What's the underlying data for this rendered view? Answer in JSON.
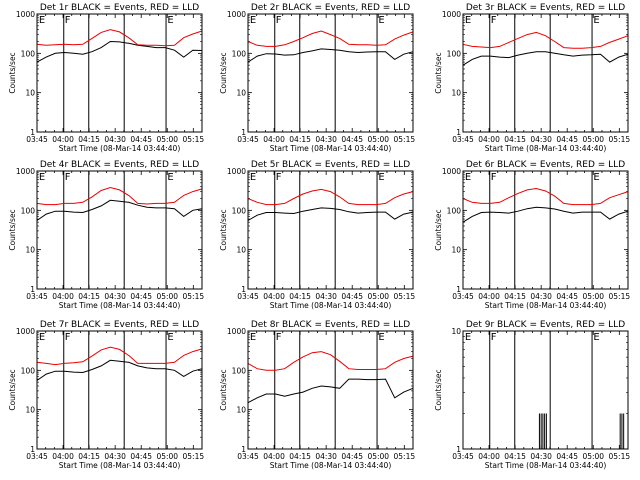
{
  "colors": {
    "events": "#000000",
    "lld": "#ee0000",
    "axis": "#000000"
  },
  "common": {
    "xlabel": "Start Time (08-Mar-14 03:44:40)",
    "ylabel": "Counts/sec",
    "x_ticks": [
      "03:45",
      "04:00",
      "04:15",
      "04:30",
      "04:45",
      "05:00",
      "05:15"
    ],
    "y_ticks": [
      "1",
      "10",
      "100",
      "1000"
    ],
    "y_scale": "log",
    "ylim": [
      1,
      1000
    ],
    "xlim_minutes_after_0345": [
      0,
      95
    ]
  },
  "chart_data": [
    {
      "type": "line",
      "title": "Det 1r BLACK = Events, RED = LLD",
      "ylim": [
        1,
        1000
      ],
      "markers": [
        {
          "label": "E",
          "x": 0.5
        },
        {
          "label": "F",
          "x": 15.4
        },
        {
          "label": "E",
          "x": 74.5
        }
      ],
      "vlines": [
        15.4,
        29.8,
        50.2,
        74.3
      ],
      "series": [
        {
          "name": "Events",
          "values": [
            60,
            80,
            100,
            105,
            100,
            95,
            110,
            140,
            200,
            195,
            180,
            160,
            150,
            140,
            140,
            120,
            80,
            120,
            118
          ]
        },
        {
          "name": "LLD",
          "values": [
            170,
            160,
            165,
            170,
            165,
            170,
            240,
            340,
            400,
            350,
            250,
            165,
            160,
            160,
            155,
            160,
            250,
            310,
            370
          ]
        }
      ]
    },
    {
      "type": "line",
      "title": "Det 2r BLACK = Events, RED = LLD",
      "ylim": [
        1,
        1000
      ],
      "markers": [
        {
          "label": "E",
          "x": 0.5
        },
        {
          "label": "F",
          "x": 15.4
        },
        {
          "label": "E",
          "x": 74.5
        }
      ],
      "vlines": [
        15.4,
        29.8,
        50.2,
        74.3
      ],
      "series": [
        {
          "name": "Events",
          "values": [
            60,
            85,
            98,
            96,
            90,
            92,
            105,
            115,
            130,
            125,
            120,
            110,
            105,
            108,
            110,
            110,
            70,
            95,
            110
          ]
        },
        {
          "name": "LLD",
          "values": [
            200,
            160,
            150,
            150,
            165,
            200,
            250,
            320,
            370,
            300,
            240,
            170,
            165,
            165,
            160,
            165,
            230,
            290,
            350
          ]
        }
      ]
    },
    {
      "type": "line",
      "title": "Det 3r BLACK = Events, RED = LLD",
      "ylim": [
        1,
        1000
      ],
      "markers": [
        {
          "label": "E",
          "x": 0.5
        },
        {
          "label": "F",
          "x": 15.4
        },
        {
          "label": "E",
          "x": 74.5
        }
      ],
      "vlines": [
        15.4,
        29.8,
        50.2,
        74.3
      ],
      "series": [
        {
          "name": "Events",
          "values": [
            50,
            70,
            85,
            85,
            80,
            78,
            90,
            100,
            110,
            110,
            100,
            92,
            85,
            90,
            92,
            95,
            60,
            80,
            95
          ]
        },
        {
          "name": "LLD",
          "values": [
            170,
            150,
            145,
            140,
            150,
            190,
            240,
            300,
            340,
            280,
            200,
            140,
            135,
            135,
            140,
            150,
            190,
            230,
            280
          ]
        }
      ]
    },
    {
      "type": "line",
      "title": "Det 4r BLACK = Events, RED = LLD",
      "ylim": [
        1,
        1000
      ],
      "markers": [
        {
          "label": "E",
          "x": 0.5
        },
        {
          "label": "F",
          "x": 15.4
        },
        {
          "label": "E",
          "x": 74.5
        }
      ],
      "vlines": [
        15.4,
        29.8,
        50.2,
        74.3
      ],
      "series": [
        {
          "name": "Events",
          "values": [
            55,
            80,
            95,
            95,
            90,
            88,
            105,
            130,
            180,
            170,
            160,
            135,
            120,
            115,
            115,
            110,
            70,
            100,
            110
          ]
        },
        {
          "name": "LLD",
          "values": [
            150,
            140,
            140,
            150,
            150,
            160,
            220,
            320,
            380,
            330,
            240,
            150,
            145,
            150,
            150,
            160,
            240,
            300,
            350
          ]
        }
      ]
    },
    {
      "type": "line",
      "title": "Det 5r BLACK = Events, RED = LLD",
      "ylim": [
        1,
        1000
      ],
      "markers": [
        {
          "label": "E",
          "x": 0.5
        },
        {
          "label": "F",
          "x": 15.4
        },
        {
          "label": "E",
          "x": 74.5
        }
      ],
      "vlines": [
        15.4,
        29.8,
        50.2,
        74.3
      ],
      "series": [
        {
          "name": "Events",
          "values": [
            55,
            75,
            88,
            88,
            85,
            83,
            95,
            105,
            115,
            112,
            105,
            92,
            85,
            88,
            90,
            90,
            60,
            80,
            90
          ]
        },
        {
          "name": "LLD",
          "values": [
            200,
            160,
            140,
            140,
            150,
            200,
            260,
            310,
            340,
            300,
            220,
            150,
            140,
            140,
            140,
            150,
            210,
            260,
            300
          ]
        }
      ]
    },
    {
      "type": "line",
      "title": "Det 6r BLACK = Events, RED = LLD",
      "ylim": [
        1,
        1000
      ],
      "markers": [
        {
          "label": "E",
          "x": 0.5
        },
        {
          "label": "F",
          "x": 15.4
        },
        {
          "label": "E",
          "x": 74.5
        }
      ],
      "vlines": [
        15.4,
        29.8,
        50.2,
        74.3
      ],
      "series": [
        {
          "name": "Events",
          "values": [
            50,
            70,
            88,
            90,
            88,
            85,
            95,
            110,
            120,
            115,
            108,
            95,
            85,
            90,
            90,
            90,
            60,
            80,
            95
          ]
        },
        {
          "name": "LLD",
          "values": [
            200,
            160,
            150,
            150,
            160,
            210,
            270,
            330,
            360,
            310,
            230,
            150,
            140,
            140,
            140,
            150,
            210,
            250,
            300
          ]
        }
      ]
    },
    {
      "type": "line",
      "title": "Det 7r BLACK = Events, RED = LLD",
      "ylim": [
        1,
        1000
      ],
      "markers": [
        {
          "label": "E",
          "x": 0.5
        },
        {
          "label": "F",
          "x": 15.4
        },
        {
          "label": "E",
          "x": 74.5
        }
      ],
      "vlines": [
        15.4,
        29.8,
        50.2,
        74.3
      ],
      "series": [
        {
          "name": "Events",
          "values": [
            55,
            80,
            95,
            95,
            90,
            88,
            105,
            130,
            180,
            170,
            160,
            130,
            115,
            110,
            110,
            100,
            70,
            95,
            110
          ]
        },
        {
          "name": "LLD",
          "values": [
            160,
            150,
            140,
            150,
            155,
            165,
            230,
            330,
            390,
            340,
            240,
            150,
            150,
            150,
            150,
            160,
            240,
            300,
            350
          ]
        }
      ]
    },
    {
      "type": "line",
      "title": "Det 8r BLACK = Events, RED = LLD",
      "ylim": [
        1,
        1000
      ],
      "markers": [
        {
          "label": "E",
          "x": 0.5
        },
        {
          "label": "F",
          "x": 15.4
        },
        {
          "label": "E",
          "x": 74.5
        }
      ],
      "vlines": [
        15.4,
        29.8,
        50.2,
        74.3
      ],
      "series": [
        {
          "name": "Events",
          "values": [
            15,
            20,
            25,
            25,
            22,
            25,
            28,
            35,
            40,
            38,
            35,
            60,
            60,
            58,
            58,
            60,
            20,
            28,
            35
          ]
        },
        {
          "name": "LLD",
          "values": [
            150,
            110,
            100,
            100,
            110,
            160,
            220,
            280,
            300,
            250,
            170,
            110,
            105,
            105,
            105,
            110,
            160,
            200,
            230
          ]
        }
      ]
    },
    {
      "type": "line",
      "title": "Det 9r BLACK = Events, RED = LLD",
      "ylim": [
        1,
        10
      ],
      "markers": [
        {
          "label": "E",
          "x": 0.5
        },
        {
          "label": "F",
          "x": 15.4
        },
        {
          "label": "E",
          "x": 74.5
        }
      ],
      "vlines": [
        15.4,
        29.8,
        50.2,
        74.3
      ],
      "series": [
        {
          "name": "Events",
          "spikes": [
            {
              "x": 44.0,
              "value": 2
            },
            {
              "x": 45.0,
              "value": 2
            },
            {
              "x": 46.0,
              "value": 2
            },
            {
              "x": 47.0,
              "value": 2
            },
            {
              "x": 48.0,
              "value": 2
            },
            {
              "x": 90.5,
              "value": 2
            },
            {
              "x": 91.5,
              "value": 2
            },
            {
              "x": 92.5,
              "value": 2
            }
          ]
        }
      ]
    }
  ]
}
